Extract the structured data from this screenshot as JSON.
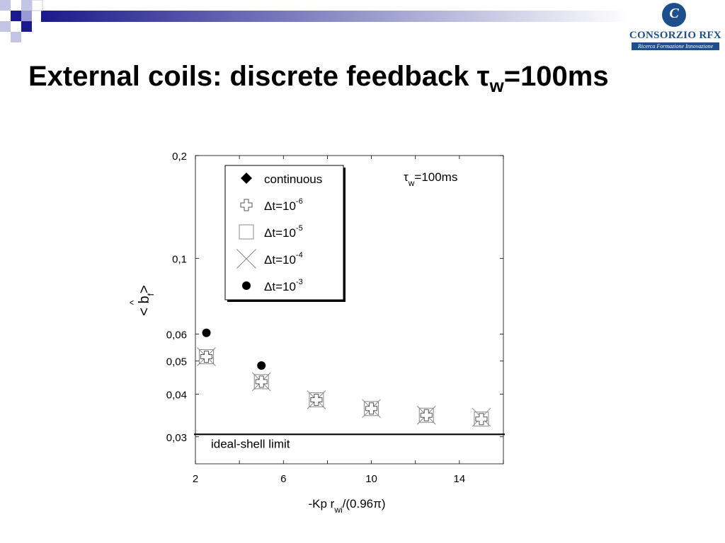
{
  "slide": {
    "title_main": "External coils: discrete feedback  τ",
    "title_sub": "w",
    "title_tail": "=100ms"
  },
  "logo": {
    "glyph": "C",
    "name": "CONSORZIO RFX",
    "tagline": "Ricerca Formazione Innovazione",
    "color": "#1d4f8c"
  },
  "colors": {
    "deco_dark": "#1a1a8c",
    "deco_light": "#9a9ad2"
  },
  "chart_data": {
    "type": "scatter",
    "xlabel": "-Kp r",
    "xlabel_sub": "wi",
    "xlabel_tail": "/(0.96π)",
    "ylabel": "< b",
    "ylabel_sub": "f",
    "ylabel_hat": "^",
    "ylabel_tail": ">",
    "annotation": "τ",
    "annotation_sub": "w",
    "annotation_tail": "=100ms",
    "xlim": [
      2,
      16
    ],
    "ylim": [
      0.025,
      0.2
    ],
    "y_scale": "log",
    "x_ticks": [
      {
        "v": 2,
        "label": "2"
      },
      {
        "v": 6,
        "label": "6"
      },
      {
        "v": 10,
        "label": "10"
      },
      {
        "v": 14,
        "label": "14"
      }
    ],
    "y_ticks": [
      {
        "v": 0.03,
        "label": "0,03"
      },
      {
        "v": 0.04,
        "label": "0,04"
      },
      {
        "v": 0.05,
        "label": "0,05"
      },
      {
        "v": 0.06,
        "label": "0,06"
      },
      {
        "v": 0.1,
        "label": "0,1"
      },
      {
        "v": 0.2,
        "label": "0,2"
      }
    ],
    "reference_line": {
      "label": "ideal-shell limit",
      "y": 0.0305
    },
    "legend_position": "top-left",
    "series": [
      {
        "name": "continuous",
        "name_exp": "",
        "marker": "diamond",
        "x": [],
        "y": []
      },
      {
        "name": "Δt=10",
        "name_exp": "-6",
        "marker": "cross",
        "x": [
          2.5,
          5,
          7.5,
          10,
          12.5,
          15
        ],
        "y": [
          0.0515,
          0.0435,
          0.0385,
          0.0363,
          0.0347,
          0.0338
        ]
      },
      {
        "name": "Δt=10",
        "name_exp": "-5",
        "marker": "square",
        "x": [
          2.5,
          5,
          7.5,
          10,
          12.5,
          15
        ],
        "y": [
          0.0515,
          0.0435,
          0.0385,
          0.0363,
          0.0347,
          0.0338
        ]
      },
      {
        "name": "Δt=10",
        "name_exp": "-4",
        "marker": "x",
        "x": [
          2.5,
          5,
          7.5,
          10,
          12.5,
          15
        ],
        "y": [
          0.0515,
          0.0435,
          0.0385,
          0.0363,
          0.0347,
          0.0342
        ]
      },
      {
        "name": "Δt=10",
        "name_exp": "-3",
        "marker": "circle",
        "x": [
          2.5,
          5
        ],
        "y": [
          0.0605,
          0.0485
        ]
      }
    ]
  }
}
